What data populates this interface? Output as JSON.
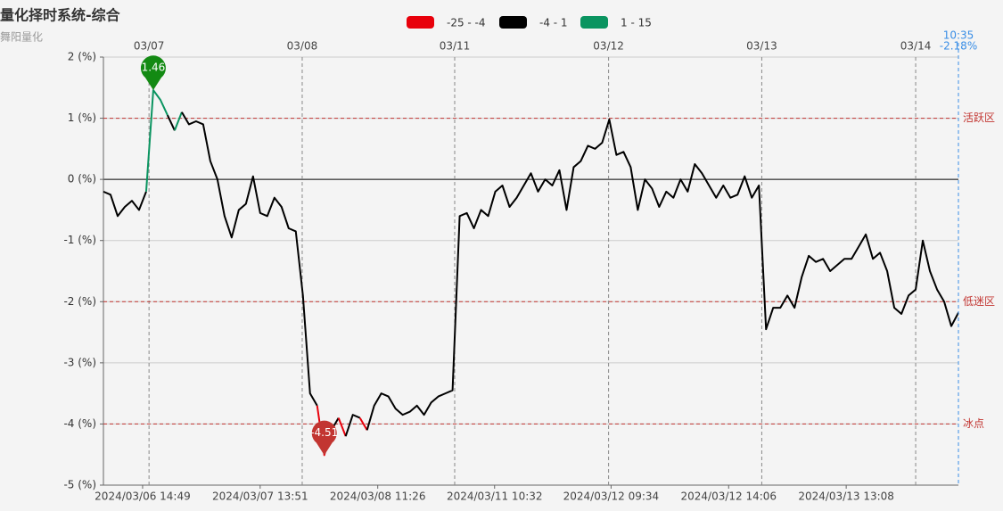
{
  "chart_data": {
    "type": "line",
    "title": "量化择时系统-综合",
    "subtitle": "舞阳量化",
    "pieces": [
      {
        "min": -25,
        "max": -4,
        "label": "-25 - -4",
        "color": "#e8000b"
      },
      {
        "min": -4,
        "max": 1,
        "label": "-4 - 1",
        "color": "#000000"
      },
      {
        "min": 1,
        "max": 15,
        "label": "1 - 15",
        "color": "#0a9460"
      }
    ],
    "xlim": [
      0,
      120
    ],
    "x_day_ticks": [
      {
        "value": 6.4,
        "label": "03/07"
      },
      {
        "value": 27.9,
        "label": "03/08"
      },
      {
        "value": 49.3,
        "label": "03/11"
      },
      {
        "value": 70.9,
        "label": "03/12"
      },
      {
        "value": 92.4,
        "label": "03/13"
      },
      {
        "value": 114,
        "label": "03/14"
      }
    ],
    "x_time_ticks": [
      {
        "value": 5.5,
        "label": "2024/03/06 14:49"
      },
      {
        "value": 22,
        "label": "2024/03/07 13:51"
      },
      {
        "value": 38.5,
        "label": "2024/03/08 11:26"
      },
      {
        "value": 54.9,
        "label": "2024/03/11 10:32"
      },
      {
        "value": 71.25,
        "label": "2024/03/12 09:34"
      },
      {
        "value": 87.75,
        "label": "2024/03/12 14:06"
      },
      {
        "value": 104.25,
        "label": "2024/03/13 13:08"
      }
    ],
    "ylim": [
      -5,
      2
    ],
    "yticks": [
      {
        "value": 2,
        "label": "2 (%)"
      },
      {
        "value": 1,
        "label": "1 (%)"
      },
      {
        "value": 0,
        "label": "0 (%)"
      },
      {
        "value": -1,
        "label": "-1 (%)"
      },
      {
        "value": -2,
        "label": "-2 (%)"
      },
      {
        "value": -3,
        "label": "-3 (%)"
      },
      {
        "value": -4,
        "label": "-4 (%)"
      },
      {
        "value": -5,
        "label": "-5 (%)"
      }
    ],
    "values": [
      -0.2,
      -0.25,
      -0.6,
      -0.45,
      -0.35,
      -0.5,
      -0.2,
      1.46,
      1.3,
      1.05,
      0.8,
      1.1,
      0.9,
      0.95,
      0.9,
      0.3,
      0.0,
      -0.6,
      -0.95,
      -0.5,
      -0.4,
      0.05,
      -0.55,
      -0.6,
      -0.3,
      -0.45,
      -0.8,
      -0.85,
      -1.9,
      -3.5,
      -3.7,
      -4.51,
      -4.1,
      -3.9,
      -4.2,
      -3.85,
      -3.9,
      -4.1,
      -3.7,
      -3.5,
      -3.55,
      -3.75,
      -3.85,
      -3.8,
      -3.7,
      -3.85,
      -3.65,
      -3.55,
      -3.5,
      -3.45,
      -0.6,
      -0.55,
      -0.8,
      -0.5,
      -0.6,
      -0.2,
      -0.1,
      -0.45,
      -0.3,
      -0.1,
      0.1,
      -0.2,
      0.0,
      -0.1,
      0.15,
      -0.5,
      0.2,
      0.3,
      0.55,
      0.5,
      0.6,
      0.98,
      0.4,
      0.45,
      0.2,
      -0.5,
      0.0,
      -0.15,
      -0.45,
      -0.2,
      -0.3,
      0.0,
      -0.2,
      0.25,
      0.1,
      -0.1,
      -0.3,
      -0.1,
      -0.3,
      -0.25,
      0.05,
      -0.3,
      -0.1,
      -2.45,
      -2.1,
      -2.1,
      -1.9,
      -2.1,
      -1.6,
      -1.25,
      -1.35,
      -1.3,
      -1.5,
      -1.4,
      -1.3,
      -1.3,
      -1.1,
      -0.9,
      -1.3,
      -1.2,
      -1.5,
      -2.1,
      -2.2,
      -1.9,
      -1.8,
      -1.0,
      -1.5,
      -1.8,
      -2.0,
      -2.4,
      -2.18
    ],
    "mark_lines": [
      {
        "value": 1,
        "label": "活跃区"
      },
      {
        "value": -2,
        "label": "低迷区"
      },
      {
        "value": -4,
        "label": "冰点"
      }
    ],
    "mark_points": [
      {
        "value": 1.46,
        "color": "#138a13"
      },
      {
        "value": -4.51,
        "color": "#c23531"
      }
    ],
    "last_point": {
      "time": "10:35",
      "label": "-2.18%"
    }
  }
}
